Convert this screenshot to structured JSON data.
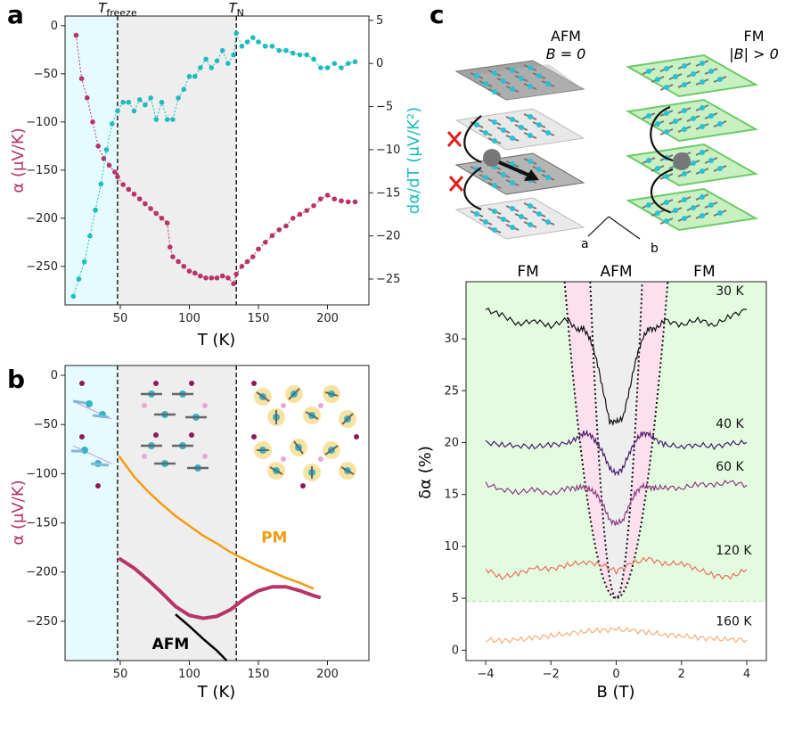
{
  "figure": {
    "panel_labels": [
      "a",
      "b",
      "c"
    ]
  },
  "chart_data": [
    {
      "id": "panel-a",
      "type": "scatter",
      "xlabel": "T (K)",
      "ylabel_left": "α (μV/K)",
      "ylabel_right": "dα/dT (μV/K²)",
      "xlim": [
        10,
        230
      ],
      "ylim_left": [
        -290,
        10
      ],
      "ylim_right": [
        -28,
        5.5
      ],
      "xticks": [
        50,
        100,
        150,
        200
      ],
      "yticks_left": [
        0,
        -50,
        -100,
        -150,
        -200,
        -250
      ],
      "yticks_right": [
        5,
        0,
        -5,
        -10,
        -15,
        -20,
        -25
      ],
      "annotations": [
        {
          "text": "T_freeze",
          "main": "T",
          "sub": "freeze",
          "x": 48
        },
        {
          "text": "T_N",
          "main": "T",
          "sub": "N",
          "x": 134
        }
      ],
      "regions": [
        {
          "name": "frozen",
          "from": 10,
          "to": 48,
          "color": "#e6fbfd"
        },
        {
          "name": "ordered",
          "from": 48,
          "to": 134,
          "color": "#eeeeee"
        }
      ],
      "series": [
        {
          "name": "alpha",
          "axis": "left",
          "color": "#b8336a",
          "x": [
            18,
            22,
            26,
            30,
            34,
            38,
            42,
            46,
            48,
            52,
            56,
            60,
            64,
            68,
            72,
            76,
            80,
            84,
            86,
            88,
            92,
            96,
            100,
            104,
            108,
            112,
            116,
            120,
            124,
            128,
            132,
            134,
            138,
            142,
            146,
            150,
            155,
            160,
            165,
            170,
            175,
            180,
            185,
            190,
            195,
            200,
            205,
            210,
            215,
            220
          ],
          "values": [
            -10,
            -55,
            -75,
            -100,
            -125,
            -138,
            -145,
            -152,
            -157,
            -165,
            -170,
            -175,
            -180,
            -185,
            -190,
            -195,
            -200,
            -205,
            -230,
            -240,
            -245,
            -250,
            -255,
            -257,
            -260,
            -262,
            -262,
            -262,
            -260,
            -262,
            -268,
            -258,
            -250,
            -245,
            -240,
            -232,
            -225,
            -218,
            -212,
            -208,
            -200,
            -196,
            -192,
            -187,
            -180,
            -176,
            -180,
            -182,
            -183,
            -183
          ]
        },
        {
          "name": "dalpha_dT",
          "axis": "right",
          "color": "#1ebcbc",
          "x": [
            16,
            20,
            24,
            28,
            32,
            36,
            40,
            44,
            48,
            52,
            56,
            60,
            64,
            68,
            72,
            76,
            80,
            84,
            88,
            92,
            96,
            100,
            104,
            108,
            112,
            116,
            120,
            124,
            128,
            132,
            134,
            138,
            142,
            146,
            150,
            155,
            160,
            165,
            170,
            175,
            180,
            185,
            190,
            195,
            200,
            205,
            210,
            215,
            220
          ],
          "values": [
            -27,
            -25,
            -23,
            -20,
            -17,
            -14,
            -10,
            -7,
            -5.5,
            -4.5,
            -4.5,
            -5.5,
            -4.2,
            -4.8,
            -4,
            -6.5,
            -4.5,
            -6.5,
            -6.5,
            -4,
            -3,
            -1.5,
            -1.5,
            -0.5,
            0.5,
            -0.5,
            0.3,
            1.5,
            0,
            1,
            3.5,
            2,
            2.5,
            3,
            2.5,
            2,
            2,
            1.5,
            1.5,
            1.2,
            1,
            1,
            0.5,
            -0.5,
            -0.5,
            0,
            -0.5,
            0,
            0.2
          ]
        }
      ]
    },
    {
      "id": "panel-b",
      "type": "line",
      "xlabel": "T (K)",
      "ylabel": "α (μV/K)",
      "xlim": [
        10,
        230
      ],
      "ylim": [
        -290,
        10
      ],
      "xticks": [
        50,
        100,
        150,
        200
      ],
      "yticks": [
        0,
        -50,
        -100,
        -150,
        -200,
        -250
      ],
      "labels": [
        {
          "text": "PM",
          "color": "#f39c12"
        },
        {
          "text": "AFM",
          "color": "#000000"
        }
      ],
      "regions": [
        {
          "name": "frozen",
          "from": 10,
          "to": 48,
          "color": "#e6fbfd"
        },
        {
          "name": "ordered",
          "from": 48,
          "to": 134,
          "color": "#eeeeee"
        }
      ],
      "series": [
        {
          "name": "PM",
          "color": "#f39c12",
          "x": [
            49,
            60,
            70,
            80,
            90,
            100,
            110,
            120,
            130,
            140,
            150,
            160,
            170,
            180,
            190
          ],
          "values": [
            -82,
            -103,
            -118,
            -131,
            -143,
            -153,
            -163,
            -171,
            -180,
            -187,
            -194,
            -200,
            -206,
            -211,
            -217
          ]
        },
        {
          "name": "AFM",
          "color": "#000000",
          "x": [
            90,
            100,
            110,
            120,
            127
          ],
          "values": [
            -243,
            -255,
            -268,
            -280,
            -290
          ]
        },
        {
          "name": "measured",
          "color": "#b8336a",
          "x": [
            49,
            60,
            70,
            80,
            90,
            100,
            110,
            120,
            130,
            140,
            150,
            160,
            170,
            180,
            190,
            195
          ],
          "values": [
            -186,
            -196,
            -208,
            -221,
            -235,
            -244,
            -247,
            -245,
            -238,
            -227,
            -219,
            -215,
            -215,
            -219,
            -224,
            -226
          ]
        }
      ]
    },
    {
      "id": "panel-c-schematic",
      "type": "other",
      "labels": {
        "afm_title": "AFM",
        "afm_field": "B = 0",
        "fm_title": "FM",
        "fm_field": "|B| > 0",
        "axis_a": "a",
        "axis_b": "b"
      }
    },
    {
      "id": "panel-c-plot",
      "type": "line",
      "xlabel": "B (T)",
      "ylabel": "δα (%)",
      "xlim": [
        -4.6,
        4.6
      ],
      "ylim": [
        -1,
        35.5
      ],
      "xticks": [
        -4,
        -2,
        0,
        2,
        4
      ],
      "yticks": [
        0,
        5,
        10,
        15,
        20,
        25,
        30
      ],
      "region_labels": [
        "FM",
        "AFM",
        "FM"
      ],
      "regions": [
        {
          "name": "FM",
          "color": "#e3fcdf"
        },
        {
          "name": "AFM-outer",
          "color": "#fde0ee"
        },
        {
          "name": "AFM-inner",
          "color": "#eeeeee"
        }
      ],
      "series": [
        {
          "name": "30 K",
          "color": "#111111",
          "x": [
            -4,
            -3.5,
            -3,
            -2.5,
            -2,
            -1.5,
            -1.2,
            -1,
            -0.8,
            -0.6,
            -0.4,
            -0.2,
            0,
            0.2,
            0.4,
            0.6,
            0.8,
            1,
            1.2,
            1.5,
            2,
            2.5,
            3,
            3.5,
            4
          ],
          "values": [
            32.8,
            32.3,
            31.4,
            31.8,
            31.2,
            31.9,
            30.8,
            31.0,
            30.0,
            28.0,
            25.0,
            22.0,
            22.0,
            22.3,
            25.0,
            28.0,
            30.0,
            31.0,
            30.9,
            31.8,
            31.3,
            31.9,
            31.3,
            32.2,
            32.8
          ]
        },
        {
          "name": "40 K",
          "color": "#4a1a6e",
          "x": [
            -4,
            -3.5,
            -3,
            -2.5,
            -2,
            -1.5,
            -1.2,
            -1,
            -0.8,
            -0.6,
            -0.4,
            -0.2,
            0,
            0.2,
            0.4,
            0.6,
            0.8,
            1,
            1.2,
            1.5,
            2,
            2.5,
            3,
            3.5,
            4
          ],
          "values": [
            20.0,
            19.8,
            19.7,
            19.6,
            19.8,
            19.9,
            20.4,
            20.9,
            20.8,
            20.0,
            19.0,
            17.5,
            17.0,
            17.5,
            19.0,
            20.2,
            20.9,
            20.8,
            20.3,
            19.8,
            19.6,
            19.8,
            19.6,
            19.9,
            20.0
          ]
        },
        {
          "name": "60 K",
          "color": "#8e3a84",
          "x": [
            -4,
            -3.5,
            -3,
            -2.5,
            -2,
            -1.5,
            -1.2,
            -1,
            -0.8,
            -0.6,
            -0.4,
            -0.2,
            0,
            0.2,
            0.4,
            0.6,
            0.8,
            1,
            1.2,
            1.5,
            2,
            2.5,
            3,
            3.5,
            4
          ],
          "values": [
            16.0,
            15.5,
            15.2,
            15.5,
            15.0,
            15.6,
            15.6,
            15.8,
            15.5,
            15.0,
            14.0,
            12.5,
            12.2,
            12.5,
            14.0,
            15.2,
            15.8,
            15.7,
            15.6,
            15.7,
            15.6,
            16.0,
            15.9,
            16.2,
            15.9
          ]
        },
        {
          "name": "120 K",
          "color": "#e8705d",
          "x": [
            -4,
            -3.5,
            -3,
            -2.5,
            -2,
            -1.5,
            -1,
            -0.5,
            0,
            0.5,
            1,
            1.5,
            2,
            2.5,
            3,
            3.5,
            4
          ],
          "values": [
            7.8,
            7.0,
            7.4,
            7.9,
            7.8,
            8.2,
            8.5,
            8.3,
            7.6,
            8.4,
            8.8,
            8.3,
            8.4,
            7.8,
            7.2,
            7.0,
            7.8
          ]
        },
        {
          "name": "160 K",
          "color": "#f5b075",
          "x": [
            -4,
            -3.5,
            -3,
            -2.5,
            -2,
            -1.5,
            -1,
            -0.5,
            0,
            0.5,
            1,
            1.5,
            2,
            2.5,
            3,
            3.5,
            4
          ],
          "values": [
            1.0,
            0.9,
            1.0,
            1.2,
            1.4,
            1.6,
            1.8,
            1.9,
            2.0,
            1.9,
            1.7,
            1.5,
            1.4,
            1.2,
            1.1,
            1.0,
            1.0
          ]
        }
      ]
    }
  ]
}
